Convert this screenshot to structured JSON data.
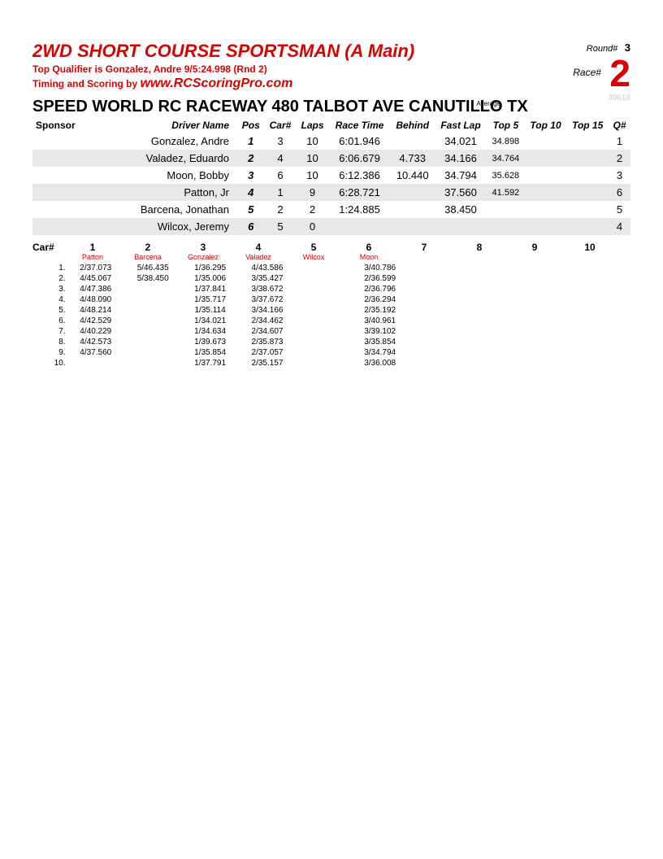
{
  "header": {
    "title": "2WD SHORT COURSE SPORTSMAN (A Main)",
    "qualifier": "Top Qualifier is Gonzalez, Andre 9/5:24.998 (Rnd 2)",
    "timing_prefix": "Timing and Scoring by ",
    "timing_site": "www.RCScoringPro.com",
    "round_label": "Round#",
    "round_val": "3",
    "race_label": "Race#",
    "race_val": "2",
    "venue": "SPEED WORLD RC RACEWAY 480 TALBOT AVE CANUTILLO TX",
    "idnum": "39618",
    "avg_label": "Average"
  },
  "results": {
    "columns": [
      "Sponsor",
      "Driver Name",
      "Pos",
      "Car#",
      "Laps",
      "Race Time",
      "Behind",
      "Fast Lap",
      "Top 5",
      "Top 10",
      "Top 15",
      "Q#"
    ],
    "rows": [
      {
        "sponsor": "",
        "driver": "Gonzalez, Andre",
        "pos": "1",
        "car": "3",
        "laps": "10",
        "time": "6:01.946",
        "behind": "",
        "fast": "34.021",
        "t5": "34.898",
        "t10": "",
        "t15": "",
        "q": "1",
        "shade": false
      },
      {
        "sponsor": "",
        "driver": "Valadez, Eduardo",
        "pos": "2",
        "car": "4",
        "laps": "10",
        "time": "6:06.679",
        "behind": "4.733",
        "fast": "34.166",
        "t5": "34.764",
        "t10": "",
        "t15": "",
        "q": "2",
        "shade": true
      },
      {
        "sponsor": "",
        "driver": "Moon, Bobby",
        "pos": "3",
        "car": "6",
        "laps": "10",
        "time": "6:12.386",
        "behind": "10.440",
        "fast": "34.794",
        "t5": "35.628",
        "t10": "",
        "t15": "",
        "q": "3",
        "shade": false
      },
      {
        "sponsor": "",
        "driver": "Patton, Jr",
        "pos": "4",
        "car": "1",
        "laps": "9",
        "time": "6:28.721",
        "behind": "",
        "fast": "37.560",
        "t5": "41.592",
        "t10": "",
        "t15": "",
        "q": "6",
        "shade": true
      },
      {
        "sponsor": "",
        "driver": "Barcena, Jonathan",
        "pos": "5",
        "car": "2",
        "laps": "2",
        "time": "1:24.885",
        "behind": "",
        "fast": "38.450",
        "t5": "",
        "t10": "",
        "t15": "",
        "q": "5",
        "shade": false
      },
      {
        "sponsor": "",
        "driver": "Wilcox, Jeremy",
        "pos": "6",
        "car": "5",
        "laps": "0",
        "time": "",
        "behind": "",
        "fast": "",
        "t5": "",
        "t10": "",
        "t15": "",
        "q": "4",
        "shade": true
      }
    ]
  },
  "cars": {
    "label": "Car#",
    "nums": [
      "1",
      "2",
      "3",
      "4",
      "5",
      "6",
      "7",
      "8",
      "9",
      "10"
    ],
    "drivers": [
      "Patton",
      "Barcena",
      "Gonzalez",
      "Valadez",
      "Wilcox",
      "Moon",
      "",
      "",
      "",
      ""
    ]
  },
  "laps": {
    "rows": [
      {
        "n": "1.",
        "c": [
          "2/37.073",
          "5/46.435",
          "1/36.295",
          "4/43.586",
          "",
          "3/40.786",
          "",
          "",
          "",
          ""
        ]
      },
      {
        "n": "2.",
        "c": [
          "4/45.067",
          "5/38.450",
          "1/35.006",
          "3/35.427",
          "",
          "2/36.599",
          "",
          "",
          "",
          ""
        ]
      },
      {
        "n": "3.",
        "c": [
          "4/47.386",
          "",
          "1/37.841",
          "3/38.672",
          "",
          "2/36.796",
          "",
          "",
          "",
          ""
        ]
      },
      {
        "n": "4.",
        "c": [
          "4/48.090",
          "",
          "1/35.717",
          "3/37.672",
          "",
          "2/36.294",
          "",
          "",
          "",
          ""
        ]
      },
      {
        "n": "5.",
        "c": [
          "4/48.214",
          "",
          "1/35.114",
          "3/34.166",
          "",
          "2/35.192",
          "",
          "",
          "",
          ""
        ]
      },
      {
        "n": "6.",
        "c": [
          "4/42.529",
          "",
          "1/34.021",
          "2/34.462",
          "",
          "3/40.961",
          "",
          "",
          "",
          ""
        ]
      },
      {
        "n": "7.",
        "c": [
          "4/40.229",
          "",
          "1/34.634",
          "2/34.607",
          "",
          "3/39.102",
          "",
          "",
          "",
          ""
        ]
      },
      {
        "n": "8.",
        "c": [
          "4/42.573",
          "",
          "1/39.673",
          "2/35.873",
          "",
          "3/35.854",
          "",
          "",
          "",
          ""
        ]
      },
      {
        "n": "9.",
        "c": [
          "4/37.560",
          "",
          "1/35.854",
          "2/37.057",
          "",
          "3/34.794",
          "",
          "",
          "",
          ""
        ]
      },
      {
        "n": "10.",
        "c": [
          "",
          "",
          "1/37.791",
          "2/35.157",
          "",
          "3/36.008",
          "",
          "",
          "",
          ""
        ]
      }
    ]
  }
}
